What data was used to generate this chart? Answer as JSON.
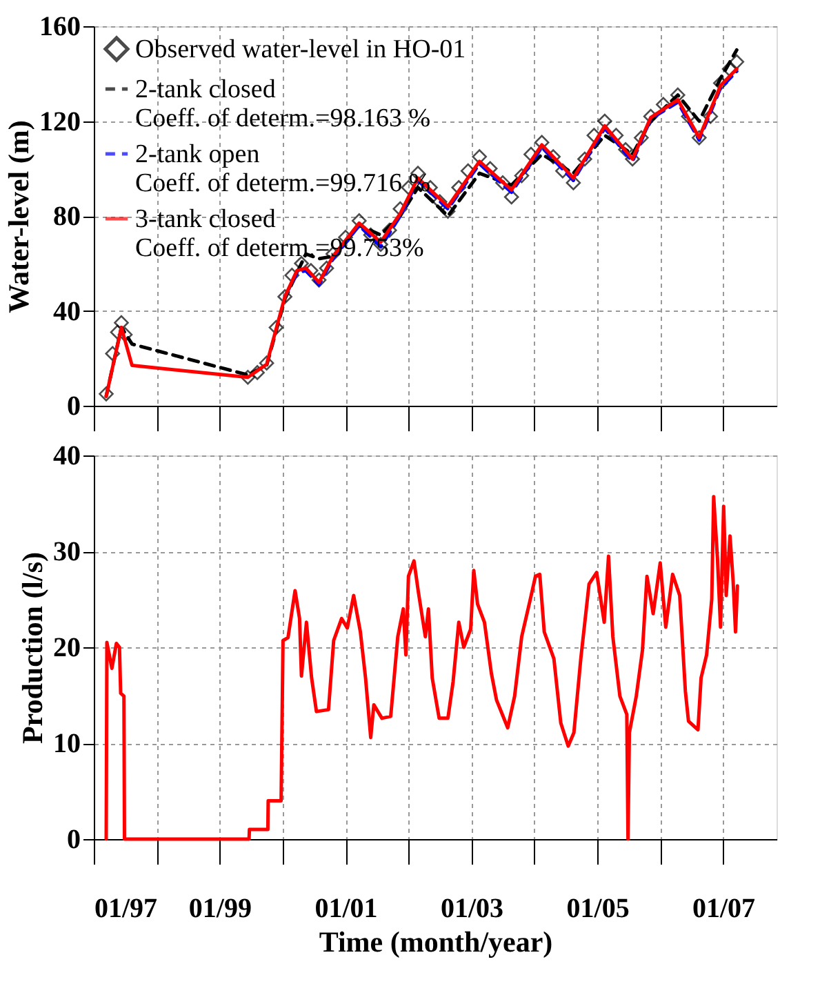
{
  "chart_data": [
    {
      "type": "line",
      "ylabel": "Water-level (m)",
      "xlim": [
        "1997-01-01",
        "2007-11-07"
      ],
      "ylim": [
        0,
        160
      ],
      "yticks": [
        0,
        40,
        80,
        120,
        160
      ],
      "xticks": [
        {
          "value": "1997-01",
          "label": null
        },
        {
          "value": "1998-01",
          "label": null
        },
        {
          "value": "1999-01",
          "label": null
        },
        {
          "value": "2000-01",
          "label": null
        },
        {
          "value": "2001-01",
          "label": null
        },
        {
          "value": "2002-01",
          "label": null
        },
        {
          "value": "2003-01",
          "label": null
        },
        {
          "value": "2004-01",
          "label": null
        },
        {
          "value": "2005-01",
          "label": null
        },
        {
          "value": "2006-01",
          "label": null
        },
        {
          "value": "2007-01",
          "label": null
        }
      ],
      "tick_labels": "y",
      "grid": true,
      "legend": "top left",
      "x": [
        "1997-03-14",
        "1997-06-10",
        "1997-08-11",
        "1999-06-14",
        "1999-10-01",
        "2000-01-15",
        "2000-03-25",
        "2000-05-16",
        "2000-07-31",
        "2000-10-20",
        "2001-03-21",
        "2001-07-24",
        "2001-11-14",
        "2002-02-25",
        "2002-08-18",
        "2003-02-17",
        "2003-08-22",
        "2004-02-14",
        "2004-08-15",
        "2005-02-13",
        "2005-07-24",
        "2005-11-07",
        "2006-04-13",
        "2006-08-15",
        "2006-12-17",
        "2007-03-21"
      ],
      "series": [
        {
          "name": "Observed water-level in  HO-01",
          "type": "scatter",
          "marker": "diamond",
          "color": "#000000",
          "x": [
            "1997-03-14",
            "1997-04-20",
            "1997-05-19",
            "1997-06-10",
            "1997-07-02",
            "1999-06-14",
            "1999-08-08",
            "1999-10-01",
            "1999-11-25",
            "2000-01-15",
            "2000-02-25",
            "2000-04-20",
            "2000-06-14",
            "2000-07-31",
            "2000-09-13",
            "2000-10-20",
            "2001-01-01",
            "2001-03-21",
            "2001-05-27",
            "2001-07-24",
            "2001-09-13",
            "2001-11-14",
            "2002-01-01",
            "2002-02-25",
            "2002-05-08",
            "2002-07-02",
            "2002-08-18",
            "2002-10-20",
            "2002-12-13",
            "2003-02-17",
            "2003-04-20",
            "2003-07-02",
            "2003-08-22",
            "2003-10-20",
            "2003-12-13",
            "2004-02-14",
            "2004-04-20",
            "2004-06-14",
            "2004-08-15",
            "2004-10-20",
            "2004-12-13",
            "2005-02-13",
            "2005-04-20",
            "2005-06-14",
            "2005-07-24",
            "2005-09-13",
            "2005-11-07",
            "2006-01-19",
            "2006-04-13",
            "2006-06-14",
            "2006-08-15",
            "2006-10-20",
            "2006-12-17",
            "2007-02-06",
            "2007-03-21"
          ],
          "values": [
            5,
            22,
            31,
            35,
            30,
            12,
            14,
            18,
            33,
            46,
            55,
            60,
            57,
            53,
            58,
            64,
            71,
            78,
            72,
            68,
            74,
            83,
            92,
            98,
            92,
            86,
            82,
            92,
            99,
            105,
            100,
            94,
            88,
            97,
            106,
            111,
            105,
            99,
            94,
            104,
            114,
            120,
            114,
            108,
            104,
            113,
            122,
            127,
            131,
            122,
            113,
            122,
            136,
            142,
            145
          ]
        },
        {
          "name": "2-tank closed\nCoeff. of determ.=98.163 %",
          "type": "line",
          "line_style": "dashed",
          "color": "#000000",
          "values": [
            4,
            33,
            26,
            13,
            17,
            45,
            56,
            64,
            62,
            63,
            76,
            72,
            80,
            92,
            80,
            98,
            93,
            106,
            98,
            114,
            106,
            120,
            131,
            120,
            138,
            150
          ]
        },
        {
          "name": "2-tank open\nCoeff. of determ.=99.716 %",
          "type": "line",
          "line_style": "dashed",
          "color": "#0000ff",
          "values": [
            null,
            null,
            null,
            null,
            null,
            46,
            56,
            57,
            51,
            62,
            76,
            67,
            80,
            95,
            83,
            102,
            90,
            109,
            95,
            117,
            103,
            121,
            128,
            112,
            134,
            141
          ]
        },
        {
          "name": "3-tank closed\nCoeff. of determ.=99.753%",
          "type": "line",
          "line_style": "solid",
          "color": "#ff0000",
          "values": [
            4,
            33,
            17,
            12,
            17.5,
            46,
            57,
            58,
            52,
            63,
            77,
            69,
            81,
            96,
            84,
            103,
            91,
            110,
            96,
            118,
            104,
            121.5,
            129,
            113,
            135,
            142
          ]
        }
      ]
    },
    {
      "type": "line",
      "xlabel": "Time (month/year)",
      "ylabel": "Production (l/s)",
      "xlim": [
        "1997-01-01",
        "2007-11-07"
      ],
      "ylim": [
        0,
        40
      ],
      "yticks": [
        0,
        10,
        20,
        30,
        40
      ],
      "xticks": [
        {
          "value": "1997-01",
          "label": "01/97"
        },
        {
          "value": "1998-01",
          "label": null
        },
        {
          "value": "1999-01",
          "label": "01/99"
        },
        {
          "value": "2000-01",
          "label": null
        },
        {
          "value": "2001-01",
          "label": "01/01"
        },
        {
          "value": "2002-01",
          "label": null
        },
        {
          "value": "2003-01",
          "label": "01/03"
        },
        {
          "value": "2004-01",
          "label": null
        },
        {
          "value": "2005-01",
          "label": "01/05"
        },
        {
          "value": "2006-01",
          "label": null
        },
        {
          "value": "2007-01",
          "label": "01/07"
        }
      ],
      "grid": true,
      "x": [
        "1997-03-14",
        "1997-03-18",
        "1997-04-16",
        "1997-05-12",
        "1997-05-30",
        "1997-06-06",
        "1997-06-25",
        "1997-06-28",
        "1999-06-21",
        "1999-06-23",
        "1999-10-08",
        "1999-10-10",
        "1999-12-24",
        "2000-01-01",
        "2000-01-04",
        "2000-02-02",
        "2000-03-14",
        "2000-04-09",
        "2000-04-20",
        "2000-05-19",
        "2000-06-18",
        "2000-07-16",
        "2000-09-24",
        "2000-10-24",
        "2000-12-09",
        "2001-01-11",
        "2001-02-17",
        "2001-03-28",
        "2001-04-27",
        "2001-05-27",
        "2001-06-14",
        "2001-07-31",
        "2001-09-20",
        "2001-10-31",
        "2001-12-02",
        "2001-12-17",
        "2002-01-01",
        "2002-02-02",
        "2002-02-28",
        "2002-04-09",
        "2002-04-27",
        "2002-05-19",
        "2002-06-28",
        "2002-08-18",
        "2002-09-17",
        "2002-10-20",
        "2002-11-18",
        "2002-12-28",
        "2003-01-15",
        "2003-02-06",
        "2003-03-18",
        "2003-04-27",
        "2003-05-27",
        "2003-07-31",
        "2003-09-09",
        "2003-10-20",
        "2003-12-09",
        "2004-01-08",
        "2004-02-02",
        "2004-02-28",
        "2004-04-24",
        "2004-06-03",
        "2004-07-16",
        "2004-08-18",
        "2004-09-27",
        "2004-11-14",
        "2004-12-28",
        "2005-02-10",
        "2005-03-07",
        "2005-04-01",
        "2005-05-12",
        "2005-06-21",
        "2005-06-28",
        "2005-07-06",
        "2005-08-15",
        "2005-09-20",
        "2005-10-16",
        "2005-11-21",
        "2006-01-01",
        "2006-02-02",
        "2006-03-14",
        "2006-04-24",
        "2006-05-27",
        "2006-06-14",
        "2006-08-08",
        "2006-08-26",
        "2006-09-27",
        "2006-10-27",
        "2006-11-07",
        "2006-11-29",
        "2006-12-17",
        "2007-01-04",
        "2007-01-19",
        "2007-02-10",
        "2007-02-28",
        "2007-03-14",
        "2007-03-25"
      ],
      "series": [
        {
          "color": "#ff0000",
          "line_style": "solid",
          "values": [
            0,
            20.5,
            17.8,
            20.4,
            20,
            15.2,
            14.9,
            0,
            0,
            1,
            1,
            4,
            4,
            16,
            20.7,
            21,
            25.9,
            23,
            17,
            22.6,
            16.8,
            13.3,
            13.5,
            20.7,
            23,
            22,
            25.4,
            21.6,
            16.8,
            10.6,
            14,
            12.6,
            12.8,
            21.1,
            24,
            19.2,
            27.4,
            29,
            25.7,
            21.1,
            24,
            16.8,
            12.6,
            12.6,
            16.4,
            22.6,
            20,
            21.9,
            28,
            24.5,
            22.6,
            17.3,
            14.5,
            11.6,
            14.9,
            21.1,
            25,
            27.4,
            27.6,
            21.6,
            18.8,
            12.1,
            9.7,
            11.1,
            18.8,
            26.6,
            27.8,
            22.6,
            29.5,
            21.1,
            14.9,
            13,
            0,
            11.1,
            14.9,
            19.7,
            27.4,
            23.5,
            28.8,
            22.1,
            27.6,
            25.4,
            15.4,
            12.3,
            11.4,
            16.8,
            19.2,
            25,
            35.7,
            29.3,
            22.1,
            34.7,
            25.4,
            31.6,
            26.9,
            21.6,
            26.4
          ]
        }
      ]
    }
  ]
}
